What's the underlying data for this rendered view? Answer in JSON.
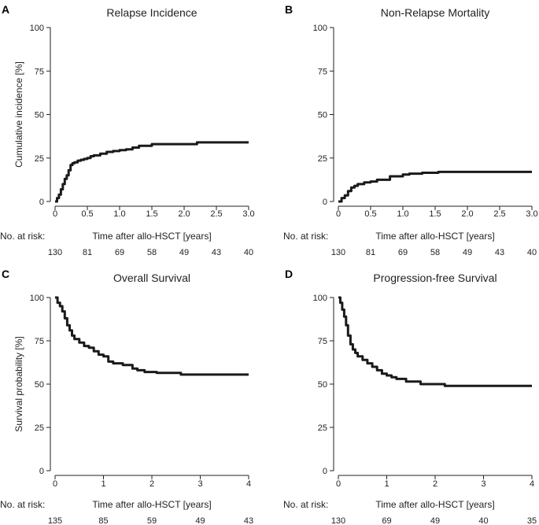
{
  "chart_data": [
    {
      "letter": "A",
      "type": "line",
      "title": "Relapse Incidence",
      "ylabel": "Cumulative incidence [%]",
      "xlabel": "Time after allo-HSCT [years]",
      "risk_label": "No. at risk:",
      "xlim": [
        0,
        3
      ],
      "ylim": [
        0,
        100
      ],
      "xticks": [
        0,
        0.5,
        1,
        1.5,
        2,
        2.5,
        3
      ],
      "xtick_labels": [
        "0",
        "0.5",
        "1.0",
        "1.5",
        "2.0",
        "2.5",
        "3.0"
      ],
      "yticks": [
        0,
        25,
        50,
        75,
        100
      ],
      "ytick_labels": [
        "0",
        "25",
        "50",
        "75",
        "100"
      ],
      "risk_x": [
        0,
        0.5,
        1,
        1.5,
        2,
        2.5,
        3
      ],
      "at_risk": [
        "130",
        "81",
        "69",
        "58",
        "49",
        "43",
        "40"
      ],
      "series": [
        {
          "name": "Relapse Incidence",
          "x": [
            0,
            0.03,
            0.06,
            0.09,
            0.12,
            0.15,
            0.18,
            0.21,
            0.24,
            0.27,
            0.3,
            0.35,
            0.4,
            0.45,
            0.5,
            0.55,
            0.6,
            0.7,
            0.8,
            0.9,
            1.0,
            1.1,
            1.2,
            1.3,
            1.5,
            2.2,
            3.0
          ],
          "y": [
            0,
            2,
            4,
            7,
            10,
            13,
            15,
            18,
            21,
            22,
            22.5,
            23.5,
            24,
            24.5,
            25,
            26,
            26.5,
            27.5,
            28.5,
            29,
            29.5,
            30,
            31,
            32,
            33,
            34,
            34
          ]
        }
      ]
    },
    {
      "letter": "B",
      "type": "line",
      "title": "Non-Relapse Mortality",
      "ylabel": "",
      "xlabel": "Time after allo-HSCT [years]",
      "risk_label": "No. at risk:",
      "xlim": [
        0,
        3
      ],
      "ylim": [
        0,
        100
      ],
      "xticks": [
        0,
        0.5,
        1,
        1.5,
        2,
        2.5,
        3
      ],
      "xtick_labels": [
        "0",
        "0.5",
        "1.0",
        "1.5",
        "2.0",
        "2.5",
        "3.0"
      ],
      "yticks": [
        0,
        25,
        50,
        75,
        100
      ],
      "ytick_labels": [
        "0",
        "25",
        "50",
        "75",
        "100"
      ],
      "risk_x": [
        0,
        0.5,
        1,
        1.5,
        2,
        2.5,
        3
      ],
      "at_risk": [
        "130",
        "81",
        "69",
        "58",
        "49",
        "43",
        "40"
      ],
      "series": [
        {
          "name": "Non-Relapse Mortality",
          "x": [
            0,
            0.05,
            0.1,
            0.15,
            0.2,
            0.25,
            0.3,
            0.4,
            0.5,
            0.6,
            0.8,
            1.0,
            1.1,
            1.3,
            1.55,
            3.0
          ],
          "y": [
            0,
            2,
            3.5,
            6,
            8,
            9,
            10,
            11,
            11.5,
            12.5,
            14.5,
            15.5,
            16,
            16.5,
            17,
            17
          ]
        }
      ]
    },
    {
      "letter": "C",
      "type": "line",
      "title": "Overall Survival",
      "ylabel": "Survival probability [%]",
      "xlabel": "Time after allo-HSCT [years]",
      "risk_label": "No. at risk:",
      "xlim": [
        0,
        4
      ],
      "ylim": [
        0,
        100
      ],
      "xticks": [
        0,
        1,
        2,
        3,
        4
      ],
      "xtick_labels": [
        "0",
        "1",
        "2",
        "3",
        "4"
      ],
      "yticks": [
        0,
        25,
        50,
        75,
        100
      ],
      "ytick_labels": [
        "0",
        "25",
        "50",
        "75",
        "100"
      ],
      "risk_x": [
        0,
        1,
        2,
        3,
        4
      ],
      "at_risk": [
        "135",
        "85",
        "59",
        "49",
        "43"
      ],
      "series": [
        {
          "name": "Overall Survival",
          "x": [
            0,
            0.05,
            0.1,
            0.15,
            0.2,
            0.25,
            0.3,
            0.35,
            0.4,
            0.5,
            0.6,
            0.7,
            0.8,
            0.9,
            1.0,
            1.1,
            1.2,
            1.4,
            1.6,
            1.7,
            1.85,
            2.1,
            2.6,
            4.0
          ],
          "y": [
            100,
            97,
            95,
            92,
            88,
            84,
            81,
            78,
            76,
            74,
            72,
            71,
            69,
            67,
            66,
            63,
            62,
            61,
            59,
            58,
            57,
            56.5,
            55.5,
            55.5
          ]
        }
      ]
    },
    {
      "letter": "D",
      "type": "line",
      "title": "Progression-free Survival",
      "ylabel": "",
      "xlabel": "Time after allo-HSCT [years]",
      "risk_label": "No. at risk:",
      "xlim": [
        0,
        4
      ],
      "ylim": [
        0,
        100
      ],
      "xticks": [
        0,
        1,
        2,
        3,
        4
      ],
      "xtick_labels": [
        "0",
        "1",
        "2",
        "3",
        "4"
      ],
      "yticks": [
        0,
        25,
        50,
        75,
        100
      ],
      "ytick_labels": [
        "0",
        "25",
        "50",
        "75",
        "100"
      ],
      "risk_x": [
        0,
        1,
        2,
        3,
        4
      ],
      "at_risk": [
        "130",
        "69",
        "49",
        "40",
        "35"
      ],
      "series": [
        {
          "name": "Progression-free Survival",
          "x": [
            0,
            0.04,
            0.08,
            0.12,
            0.16,
            0.2,
            0.25,
            0.3,
            0.35,
            0.4,
            0.5,
            0.6,
            0.7,
            0.8,
            0.9,
            1.0,
            1.1,
            1.2,
            1.4,
            1.7,
            2.2,
            4.0
          ],
          "y": [
            100,
            97,
            93,
            89,
            84,
            78,
            73,
            70,
            68,
            66,
            64,
            62,
            60,
            58,
            56,
            55,
            54,
            53,
            51.5,
            50,
            49,
            49
          ]
        }
      ]
    }
  ]
}
